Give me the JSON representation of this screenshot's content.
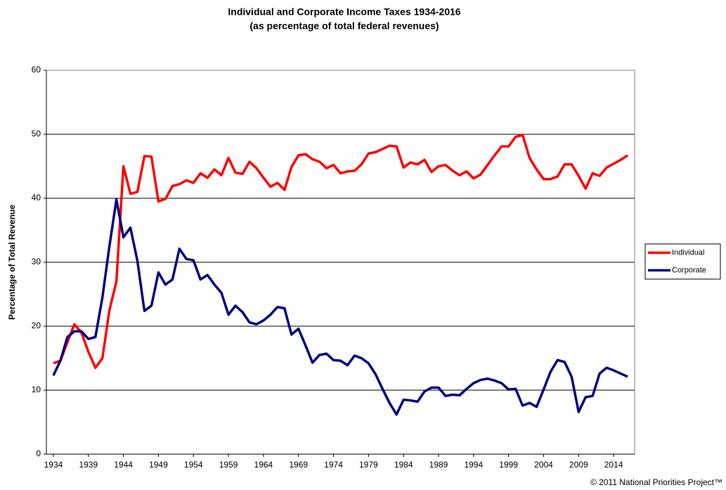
{
  "chart_data": {
    "type": "line",
    "title": "Individual and Corporate Income Taxes 1934-2016",
    "subtitle": "(as percentage of total federal revenues)",
    "y_label": "Percentage of Total Revenue",
    "credit": "© 2011 National Priorities Project™",
    "x": [
      1934,
      1935,
      1936,
      1937,
      1938,
      1939,
      1940,
      1941,
      1942,
      1943,
      1944,
      1945,
      1946,
      1947,
      1948,
      1949,
      1950,
      1951,
      1952,
      1953,
      1954,
      1955,
      1956,
      1957,
      1958,
      1959,
      1960,
      1961,
      1962,
      1963,
      1964,
      1965,
      1966,
      1967,
      1968,
      1969,
      1970,
      1971,
      1972,
      1973,
      1974,
      1975,
      1976,
      1977,
      1978,
      1979,
      1980,
      1981,
      1982,
      1983,
      1984,
      1985,
      1986,
      1987,
      1988,
      1989,
      1990,
      1991,
      1992,
      1993,
      1994,
      1995,
      1996,
      1997,
      1998,
      1999,
      2000,
      2001,
      2002,
      2003,
      2004,
      2005,
      2006,
      2007,
      2008,
      2009,
      2010,
      2011,
      2012,
      2013,
      2014,
      2015,
      2016
    ],
    "series": [
      {
        "name": "Individual",
        "color": "#ff0000",
        "values": [
          14.2,
          14.6,
          17.5,
          20.3,
          19.0,
          16.0,
          13.5,
          15.0,
          22.5,
          27.0,
          45.0,
          40.7,
          41.0,
          46.6,
          46.5,
          39.5,
          39.9,
          41.9,
          42.2,
          42.8,
          42.4,
          43.9,
          43.2,
          44.5,
          43.6,
          46.3,
          44.0,
          43.8,
          45.7,
          44.7,
          43.2,
          41.8,
          42.4,
          41.3,
          44.9,
          46.7,
          46.9,
          46.1,
          45.7,
          44.7,
          45.2,
          43.9,
          44.2,
          44.3,
          45.3,
          47.0,
          47.2,
          47.7,
          48.2,
          48.1,
          44.8,
          45.6,
          45.3,
          46.0,
          44.1,
          45.0,
          45.2,
          44.3,
          43.6,
          44.2,
          43.1,
          43.7,
          45.2,
          46.7,
          48.1,
          48.1,
          49.6,
          49.9,
          46.3,
          44.5,
          43.0,
          43.0,
          43.4,
          45.3,
          45.3,
          43.5,
          41.5,
          43.9,
          43.5,
          44.8,
          45.4,
          46.0,
          46.7
        ]
      },
      {
        "name": "Corporate",
        "color": "#000080",
        "values": [
          12.3,
          14.6,
          18.3,
          19.2,
          19.2,
          18.0,
          18.3,
          24.5,
          32.5,
          39.8,
          33.9,
          35.4,
          30.2,
          22.4,
          23.2,
          28.4,
          26.5,
          27.3,
          32.1,
          30.5,
          30.3,
          27.3,
          28.0,
          26.5,
          25.2,
          21.8,
          23.2,
          22.2,
          20.6,
          20.3,
          20.9,
          21.8,
          23.0,
          22.8,
          18.7,
          19.6,
          17.0,
          14.3,
          15.5,
          15.7,
          14.7,
          14.6,
          13.9,
          15.4,
          15.0,
          14.2,
          12.5,
          10.2,
          8.0,
          6.2,
          8.5,
          8.4,
          8.2,
          9.8,
          10.4,
          10.4,
          9.1,
          9.3,
          9.2,
          10.2,
          11.1,
          11.6,
          11.8,
          11.5,
          11.1,
          10.1,
          10.2,
          7.6,
          8.0,
          7.4,
          10.1,
          12.9,
          14.7,
          14.4,
          12.1,
          6.6,
          8.9,
          9.1,
          12.6,
          13.5,
          13.1,
          12.6,
          12.1
        ]
      }
    ],
    "xlim": [
      1933,
      2017
    ],
    "xticks": [
      1934,
      1939,
      1944,
      1949,
      1954,
      1959,
      1964,
      1969,
      1974,
      1979,
      1984,
      1989,
      1994,
      1999,
      2004,
      2009,
      2014
    ],
    "ylim": [
      0,
      60
    ],
    "yticks": [
      0,
      10,
      20,
      30,
      40,
      50,
      60
    ],
    "grid": true,
    "legend": "right"
  }
}
